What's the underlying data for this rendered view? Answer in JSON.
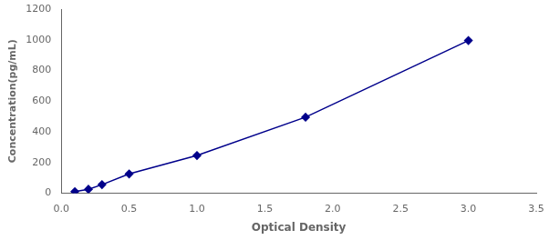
{
  "chart_data": {
    "type": "line",
    "x": [
      0.1,
      0.2,
      0.3,
      0.5,
      1.0,
      1.8,
      3.0
    ],
    "values": [
      10,
      25,
      55,
      125,
      245,
      495,
      995
    ],
    "color": "#00008B",
    "marker": "diamond",
    "line_style": "solid",
    "xlabel": "Optical Density",
    "ylabel": "Concentration(pg/mL)",
    "xlim": [
      0,
      3.5
    ],
    "ylim": [
      0,
      1200
    ],
    "xticks": [
      {
        "value": 0,
        "label": "0.0"
      },
      0.5,
      {
        "value": 1,
        "label": "1.0"
      },
      1.5,
      {
        "value": 2,
        "label": "2.0"
      },
      2.5,
      {
        "value": 3,
        "label": "3.0"
      },
      3.5
    ],
    "yticks": [
      0,
      200,
      400,
      600,
      800,
      1000,
      1200
    ],
    "grid": false
  }
}
